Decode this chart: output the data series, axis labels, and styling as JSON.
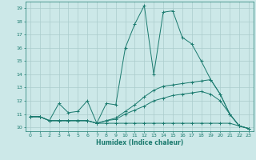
{
  "xlabel": "Humidex (Indice chaleur)",
  "xlim": [
    -0.5,
    23.5
  ],
  "ylim": [
    9.7,
    19.5
  ],
  "yticks": [
    10,
    11,
    12,
    13,
    14,
    15,
    16,
    17,
    18,
    19
  ],
  "xticks": [
    0,
    1,
    2,
    3,
    4,
    5,
    6,
    7,
    8,
    9,
    10,
    11,
    12,
    13,
    14,
    15,
    16,
    17,
    18,
    19,
    20,
    21,
    22,
    23
  ],
  "bg_color": "#cce8e8",
  "grid_color": "#aacccc",
  "line_color": "#1a7a6e",
  "curves": [
    {
      "x": [
        0,
        1,
        2,
        3,
        4,
        5,
        6,
        7,
        8,
        9,
        10,
        11,
        12,
        13,
        14,
        15,
        16,
        17,
        18,
        19,
        20,
        21,
        22,
        23
      ],
      "y": [
        10.8,
        10.8,
        10.5,
        11.8,
        11.1,
        11.2,
        12.0,
        10.3,
        11.8,
        11.7,
        16.0,
        17.8,
        19.2,
        14.0,
        18.7,
        18.8,
        16.8,
        16.3,
        15.0,
        13.6,
        12.5,
        11.0,
        10.1,
        9.9
      ]
    },
    {
      "x": [
        0,
        1,
        2,
        3,
        4,
        5,
        6,
        7,
        8,
        9,
        10,
        11,
        12,
        13,
        14,
        15,
        16,
        17,
        18,
        19,
        20,
        21,
        22,
        23
      ],
      "y": [
        10.8,
        10.8,
        10.5,
        10.5,
        10.5,
        10.5,
        10.5,
        10.3,
        10.5,
        10.7,
        11.2,
        11.7,
        12.3,
        12.8,
        13.1,
        13.2,
        13.3,
        13.4,
        13.5,
        13.6,
        12.5,
        11.0,
        10.1,
        9.9
      ]
    },
    {
      "x": [
        0,
        1,
        2,
        3,
        4,
        5,
        6,
        7,
        8,
        9,
        10,
        11,
        12,
        13,
        14,
        15,
        16,
        17,
        18,
        19,
        20,
        21,
        22,
        23
      ],
      "y": [
        10.8,
        10.8,
        10.5,
        10.5,
        10.5,
        10.5,
        10.5,
        10.3,
        10.5,
        10.6,
        11.0,
        11.3,
        11.6,
        12.0,
        12.2,
        12.4,
        12.5,
        12.6,
        12.7,
        12.5,
        12.0,
        11.0,
        10.1,
        9.9
      ]
    },
    {
      "x": [
        0,
        1,
        2,
        3,
        4,
        5,
        6,
        7,
        8,
        9,
        10,
        11,
        12,
        13,
        14,
        15,
        16,
        17,
        18,
        19,
        20,
        21,
        22,
        23
      ],
      "y": [
        10.8,
        10.8,
        10.5,
        10.5,
        10.5,
        10.5,
        10.5,
        10.3,
        10.3,
        10.3,
        10.3,
        10.3,
        10.3,
        10.3,
        10.3,
        10.3,
        10.3,
        10.3,
        10.3,
        10.3,
        10.3,
        10.3,
        10.1,
        9.9
      ]
    }
  ]
}
